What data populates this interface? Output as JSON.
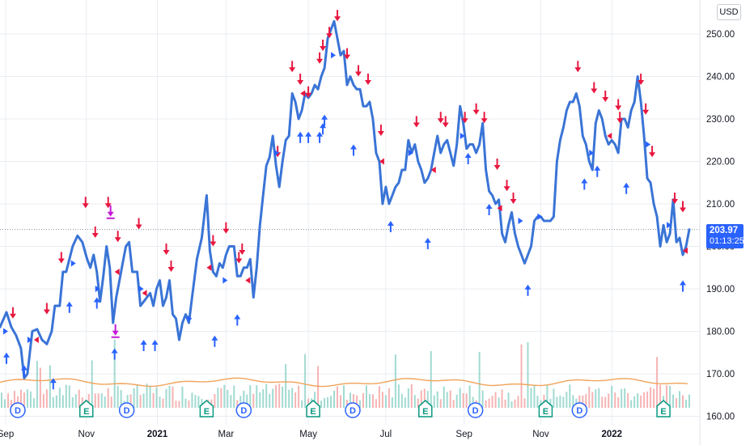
{
  "currency": "USD",
  "last_price": "203.97",
  "countdown": "01:13:25",
  "colors": {
    "price_line": "#3a74d6",
    "sell_marker": "#e8173f",
    "buy_marker": "#2962ff",
    "special_marker": "#c41bd6",
    "volume_up": "#8fd3c9",
    "volume_down": "#f4a6a6",
    "volume_ma": "#f0a35a",
    "grid": "#e9ecf2",
    "earnings_badge": "#089981",
    "dividend_badge": "#2962ff"
  },
  "chart_data": {
    "type": "line",
    "title": "",
    "xlabel": "",
    "ylabel": "",
    "y_axis_side": "right",
    "ylim": [
      158,
      258
    ],
    "yticks": [
      "160.00",
      "170.00",
      "180.00",
      "190.00",
      "200.00",
      "210.00",
      "220.00",
      "230.00",
      "240.00",
      "250.00"
    ],
    "grid": true,
    "x_ticks": [
      {
        "label": "Sep",
        "day": 7,
        "bold": false
      },
      {
        "label": "Nov",
        "day": 107,
        "bold": false
      },
      {
        "label": "2021",
        "day": 195,
        "bold": true
      },
      {
        "label": "Mar",
        "day": 280,
        "bold": false
      },
      {
        "label": "May",
        "day": 382,
        "bold": false
      },
      {
        "label": "Jul",
        "day": 478,
        "bold": false
      },
      {
        "label": "Sep",
        "day": 575,
        "bold": false
      },
      {
        "label": "Nov",
        "day": 670,
        "bold": false
      },
      {
        "label": "2022",
        "day": 758,
        "bold": true
      }
    ],
    "x_range_days": [
      0,
      860
    ],
    "series": [
      {
        "values_xy": [
          [
            0,
            181
          ],
          [
            8,
            184.5
          ],
          [
            14,
            181
          ],
          [
            20,
            179
          ],
          [
            26,
            176
          ],
          [
            30,
            169
          ],
          [
            34,
            170
          ],
          [
            40,
            180
          ],
          [
            46,
            180.5
          ],
          [
            52,
            178
          ],
          [
            58,
            177
          ],
          [
            64,
            180
          ],
          [
            68,
            186
          ],
          [
            74,
            186
          ],
          [
            78,
            194
          ],
          [
            82,
            194
          ],
          [
            86,
            197
          ],
          [
            90,
            200
          ],
          [
            96,
            202.5
          ],
          [
            102,
            201
          ],
          [
            108,
            197
          ],
          [
            112,
            195
          ],
          [
            116,
            198
          ],
          [
            120,
            194
          ],
          [
            124,
            187
          ],
          [
            128,
            193
          ],
          [
            132,
            200
          ],
          [
            136,
            195
          ],
          [
            140,
            182
          ],
          [
            144,
            188
          ],
          [
            148,
            192
          ],
          [
            152,
            196
          ],
          [
            156,
            200
          ],
          [
            160,
            201
          ],
          [
            164,
            194
          ],
          [
            170,
            194
          ],
          [
            174,
            186
          ],
          [
            178,
            187
          ],
          [
            182,
            188
          ],
          [
            186,
            189
          ],
          [
            190,
            186
          ],
          [
            194,
            190
          ],
          [
            198,
            192
          ],
          [
            202,
            186
          ],
          [
            206,
            188
          ],
          [
            210,
            192
          ],
          [
            214,
            184
          ],
          [
            218,
            183
          ],
          [
            222,
            178
          ],
          [
            226,
            182
          ],
          [
            230,
            184
          ],
          [
            234,
            182
          ],
          [
            238,
            188
          ],
          [
            244,
            197
          ],
          [
            250,
            202
          ],
          [
            256,
            212
          ],
          [
            260,
            199
          ],
          [
            264,
            194
          ],
          [
            268,
            193
          ],
          [
            272,
            196
          ],
          [
            276,
            195
          ],
          [
            280,
            198
          ],
          [
            284,
            200
          ],
          [
            290,
            200
          ],
          [
            294,
            193
          ],
          [
            298,
            193
          ],
          [
            302,
            195
          ],
          [
            306,
            195
          ],
          [
            310,
            197
          ],
          [
            314,
            188
          ],
          [
            318,
            195
          ],
          [
            322,
            205
          ],
          [
            326,
            212
          ],
          [
            330,
            219
          ],
          [
            334,
            221
          ],
          [
            338,
            226
          ],
          [
            342,
            219
          ],
          [
            346,
            214
          ],
          [
            350,
            220
          ],
          [
            354,
            225
          ],
          [
            358,
            226
          ],
          [
            362,
            236
          ],
          [
            366,
            234
          ],
          [
            370,
            230
          ],
          [
            374,
            232
          ],
          [
            378,
            236
          ],
          [
            382,
            235
          ],
          [
            386,
            236
          ],
          [
            390,
            238
          ],
          [
            394,
            237
          ],
          [
            398,
            240
          ],
          [
            402,
            242
          ],
          [
            406,
            249
          ],
          [
            410,
            251
          ],
          [
            414,
            253
          ],
          [
            418,
            249
          ],
          [
            422,
            245
          ],
          [
            426,
            246
          ],
          [
            430,
            238
          ],
          [
            434,
            240
          ],
          [
            438,
            238
          ],
          [
            442,
            237
          ],
          [
            446,
            237
          ],
          [
            450,
            233
          ],
          [
            454,
            233
          ],
          [
            458,
            234
          ],
          [
            462,
            230
          ],
          [
            466,
            222
          ],
          [
            470,
            220
          ],
          [
            474,
            210
          ],
          [
            478,
            214
          ],
          [
            482,
            210
          ],
          [
            486,
            212
          ],
          [
            490,
            214
          ],
          [
            494,
            215
          ],
          [
            498,
            218
          ],
          [
            502,
            218
          ],
          [
            506,
            225
          ],
          [
            510,
            222
          ],
          [
            514,
            224
          ],
          [
            518,
            220
          ],
          [
            522,
            218
          ],
          [
            526,
            215
          ],
          [
            530,
            216
          ],
          [
            534,
            218
          ],
          [
            538,
            222
          ],
          [
            542,
            226
          ],
          [
            546,
            222
          ],
          [
            550,
            224
          ],
          [
            554,
            225
          ],
          [
            558,
            222
          ],
          [
            562,
            219
          ],
          [
            566,
            224
          ],
          [
            570,
            233
          ],
          [
            574,
            229
          ],
          [
            578,
            223
          ],
          [
            582,
            224
          ],
          [
            586,
            224
          ],
          [
            590,
            222
          ],
          [
            594,
            224
          ],
          [
            598,
            229
          ],
          [
            602,
            218
          ],
          [
            606,
            213
          ],
          [
            610,
            212
          ],
          [
            614,
            210
          ],
          [
            618,
            211
          ],
          [
            622,
            203
          ],
          [
            626,
            201
          ],
          [
            630,
            205
          ],
          [
            634,
            208
          ],
          [
            638,
            203
          ],
          [
            642,
            200
          ],
          [
            646,
            198
          ],
          [
            650,
            196
          ],
          [
            654,
            198
          ],
          [
            658,
            200
          ],
          [
            662,
            206
          ],
          [
            666,
            207
          ],
          [
            670,
            207
          ],
          [
            674,
            206
          ],
          [
            678,
            206
          ],
          [
            682,
            206
          ],
          [
            686,
            207
          ],
          [
            690,
            220
          ],
          [
            694,
            225
          ],
          [
            698,
            228
          ],
          [
            702,
            232
          ],
          [
            706,
            234
          ],
          [
            710,
            234
          ],
          [
            714,
            236
          ],
          [
            718,
            233
          ],
          [
            722,
            226
          ],
          [
            726,
            224
          ],
          [
            730,
            220
          ],
          [
            734,
            218
          ],
          [
            738,
            229
          ],
          [
            742,
            232
          ],
          [
            746,
            230
          ],
          [
            750,
            226
          ],
          [
            754,
            224
          ],
          [
            758,
            225
          ],
          [
            762,
            224
          ],
          [
            766,
            222
          ],
          [
            770,
            230
          ],
          [
            774,
            230
          ],
          [
            778,
            228
          ],
          [
            782,
            232
          ],
          [
            786,
            234
          ],
          [
            790,
            240
          ],
          [
            794,
            234
          ],
          [
            798,
            226
          ],
          [
            802,
            216
          ],
          [
            806,
            215
          ],
          [
            810,
            210
          ],
          [
            814,
            207
          ],
          [
            818,
            200
          ],
          [
            822,
            205
          ],
          [
            826,
            201
          ],
          [
            830,
            203
          ],
          [
            834,
            211
          ],
          [
            838,
            201
          ],
          [
            842,
            202
          ],
          [
            846,
            198
          ],
          [
            850,
            200
          ],
          [
            854,
            203.97
          ]
        ]
      }
    ],
    "sell_markers": [
      [
        16,
        183
      ],
      [
        58,
        184
      ],
      [
        76,
        196
      ],
      [
        106,
        209
      ],
      [
        118,
        202
      ],
      [
        134,
        209
      ],
      [
        146,
        201
      ],
      [
        172,
        204
      ],
      [
        206,
        198
      ],
      [
        212,
        194
      ],
      [
        264,
        200
      ],
      [
        280,
        203
      ],
      [
        296,
        196
      ],
      [
        300,
        198
      ],
      [
        344,
        221
      ],
      [
        362,
        241
      ],
      [
        372,
        238
      ],
      [
        382,
        235
      ],
      [
        396,
        243
      ],
      [
        400,
        246
      ],
      [
        408,
        249
      ],
      [
        418,
        253
      ],
      [
        430,
        244
      ],
      [
        444,
        240
      ],
      [
        456,
        238
      ],
      [
        472,
        226
      ],
      [
        516,
        228
      ],
      [
        546,
        229
      ],
      [
        552,
        228
      ],
      [
        576,
        229
      ],
      [
        590,
        231
      ],
      [
        600,
        229
      ],
      [
        616,
        218
      ],
      [
        628,
        213
      ],
      [
        636,
        210
      ],
      [
        716,
        241
      ],
      [
        736,
        236
      ],
      [
        750,
        234
      ],
      [
        766,
        232
      ],
      [
        768,
        229
      ],
      [
        794,
        238
      ],
      [
        800,
        231
      ],
      [
        808,
        221
      ],
      [
        836,
        210
      ],
      [
        846,
        208
      ]
    ],
    "buy_markers": [
      [
        8,
        175
      ],
      [
        30,
        172
      ],
      [
        66,
        169
      ],
      [
        86,
        187
      ],
      [
        120,
        188
      ],
      [
        142,
        176
      ],
      [
        178,
        178
      ],
      [
        192,
        178
      ],
      [
        266,
        179
      ],
      [
        294,
        184
      ],
      [
        372,
        227
      ],
      [
        382,
        227
      ],
      [
        396,
        227
      ],
      [
        400,
        229
      ],
      [
        402,
        231
      ],
      [
        438,
        224
      ],
      [
        484,
        206
      ],
      [
        530,
        202
      ],
      [
        580,
        222
      ],
      [
        606,
        210
      ],
      [
        654,
        191
      ],
      [
        724,
        216
      ],
      [
        740,
        219
      ],
      [
        776,
        215
      ],
      [
        846,
        192
      ]
    ],
    "special_markers": [
      [
        137,
        207,
        "down"
      ],
      [
        143,
        179,
        "down"
      ]
    ],
    "volume": {
      "ma_level": 168,
      "base": 162
    },
    "event_badges": [
      {
        "label": "D",
        "day": 22,
        "kind": "dividend"
      },
      {
        "label": "E",
        "day": 107,
        "kind": "earnings"
      },
      {
        "label": "D",
        "day": 157,
        "kind": "dividend"
      },
      {
        "label": "E",
        "day": 256,
        "kind": "earnings"
      },
      {
        "label": "D",
        "day": 302,
        "kind": "dividend"
      },
      {
        "label": "E",
        "day": 388,
        "kind": "earnings"
      },
      {
        "label": "D",
        "day": 437,
        "kind": "dividend"
      },
      {
        "label": "E",
        "day": 527,
        "kind": "earnings"
      },
      {
        "label": "D",
        "day": 589,
        "kind": "dividend"
      },
      {
        "label": "E",
        "day": 676,
        "kind": "earnings"
      },
      {
        "label": "D",
        "day": 718,
        "kind": "dividend"
      },
      {
        "label": "E",
        "day": 822,
        "kind": "earnings"
      }
    ]
  }
}
